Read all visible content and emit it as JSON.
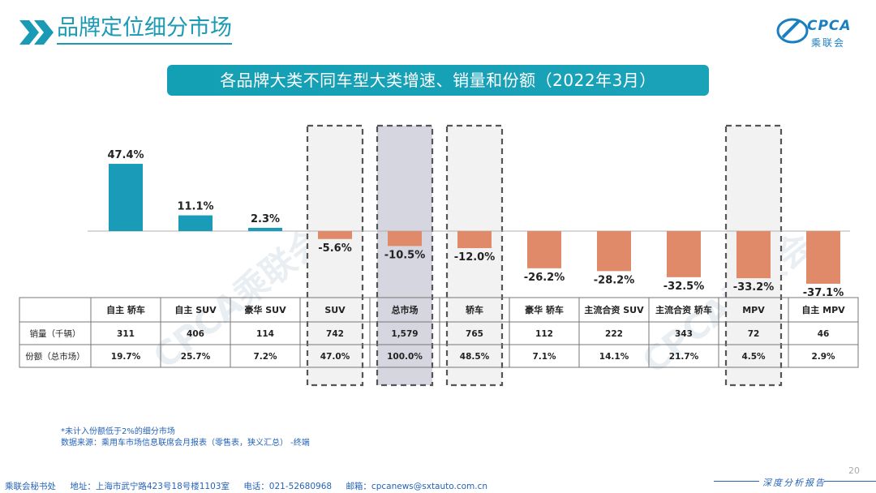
{
  "header": {
    "title": "品牌定位细分市场"
  },
  "logo": {
    "text": "CPCA",
    "sub": "乘联会"
  },
  "chart_data": {
    "type": "bar",
    "title": "各品牌大类不同车型大类增速、销量和份额（2022年3月）",
    "categories": [
      "自主 轿车",
      "自主 SUV",
      "豪华 SUV",
      "SUV",
      "总市场",
      "轿车",
      "豪华 轿车",
      "主流合资 SUV",
      "主流合资 轿车",
      "MPV",
      "自主 MPV"
    ],
    "values": [
      47.4,
      11.1,
      2.3,
      -5.6,
      -10.5,
      -12.0,
      -26.2,
      -28.2,
      -32.5,
      -33.2,
      -37.1
    ],
    "value_labels": [
      "47.4%",
      "11.1%",
      "2.3%",
      "-5.6%",
      "-10.5%",
      "-12.0%",
      "-26.2%",
      "-28.2%",
      "-32.5%",
      "-33.2%",
      "-37.1%"
    ],
    "highlighted": [
      "SUV",
      "总市场",
      "轿车",
      "MPV"
    ],
    "colors": {
      "positive": "#1a9bb8",
      "negative": "#e08a6a"
    },
    "table": {
      "rows": [
        {
          "label": "销量（千辆）",
          "values": [
            "311",
            "406",
            "114",
            "742",
            "1,579",
            "765",
            "112",
            "222",
            "343",
            "72",
            "46"
          ]
        },
        {
          "label": "份额（总市场）",
          "values": [
            "19.7%",
            "25.7%",
            "7.2%",
            "47.0%",
            "100.0%",
            "48.5%",
            "7.1%",
            "14.1%",
            "21.7%",
            "4.5%",
            "2.9%"
          ]
        }
      ]
    }
  },
  "watermark": "CPCA乘联会",
  "footnote": {
    "line1": "*未计入份额低于2%的细分市场",
    "line2": "数据来源：乘用车市场信息联席会月报表（零售表，狭义汇总）  -终端"
  },
  "footer": {
    "org": "乘联会秘书处",
    "address": "地址：上海市武宁路423号18号楼1103室",
    "phone": "电话：021-52680968",
    "email": "邮箱：cpcanews@sxtauto.com.cn",
    "page": "20",
    "tag": "深度分析报告"
  }
}
